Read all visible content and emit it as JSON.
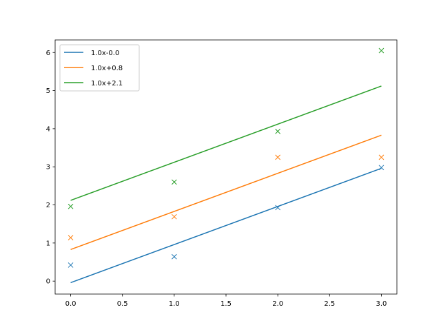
{
  "chart_data": {
    "type": "line",
    "title": "",
    "xlabel": "",
    "ylabel": "",
    "xlim": [
      -0.15,
      3.15
    ],
    "ylim": [
      -0.34,
      6.33
    ],
    "xticks": [
      "0.0",
      "0.5",
      "1.0",
      "1.5",
      "2.0",
      "2.5",
      "3.0"
    ],
    "xtick_values": [
      0,
      0.5,
      1,
      1.5,
      2,
      2.5,
      3
    ],
    "yticks": [
      "0",
      "1",
      "2",
      "3",
      "4",
      "5",
      "6"
    ],
    "ytick_values": [
      0,
      1,
      2,
      3,
      4,
      5,
      6
    ],
    "grid": false,
    "legend_position": "upper-left",
    "series": [
      {
        "name": "1.0x-0.0",
        "color": "#1f77b4",
        "slope": 1.0,
        "intercept": -0.04,
        "points_x": [
          0,
          1,
          2,
          3
        ],
        "points_y": [
          0.42,
          0.64,
          1.93,
          2.98
        ]
      },
      {
        "name": "1.0x+0.8",
        "color": "#ff7f0e",
        "slope": 1.0,
        "intercept": 0.83,
        "points_x": [
          0,
          1,
          2,
          3
        ],
        "points_y": [
          1.14,
          1.69,
          3.25,
          3.25
        ]
      },
      {
        "name": "1.0x+2.1",
        "color": "#2ca02c",
        "slope": 1.0,
        "intercept": 2.12,
        "points_x": [
          0,
          1,
          2,
          3
        ],
        "points_y": [
          1.96,
          2.6,
          3.93,
          6.05
        ]
      }
    ]
  }
}
